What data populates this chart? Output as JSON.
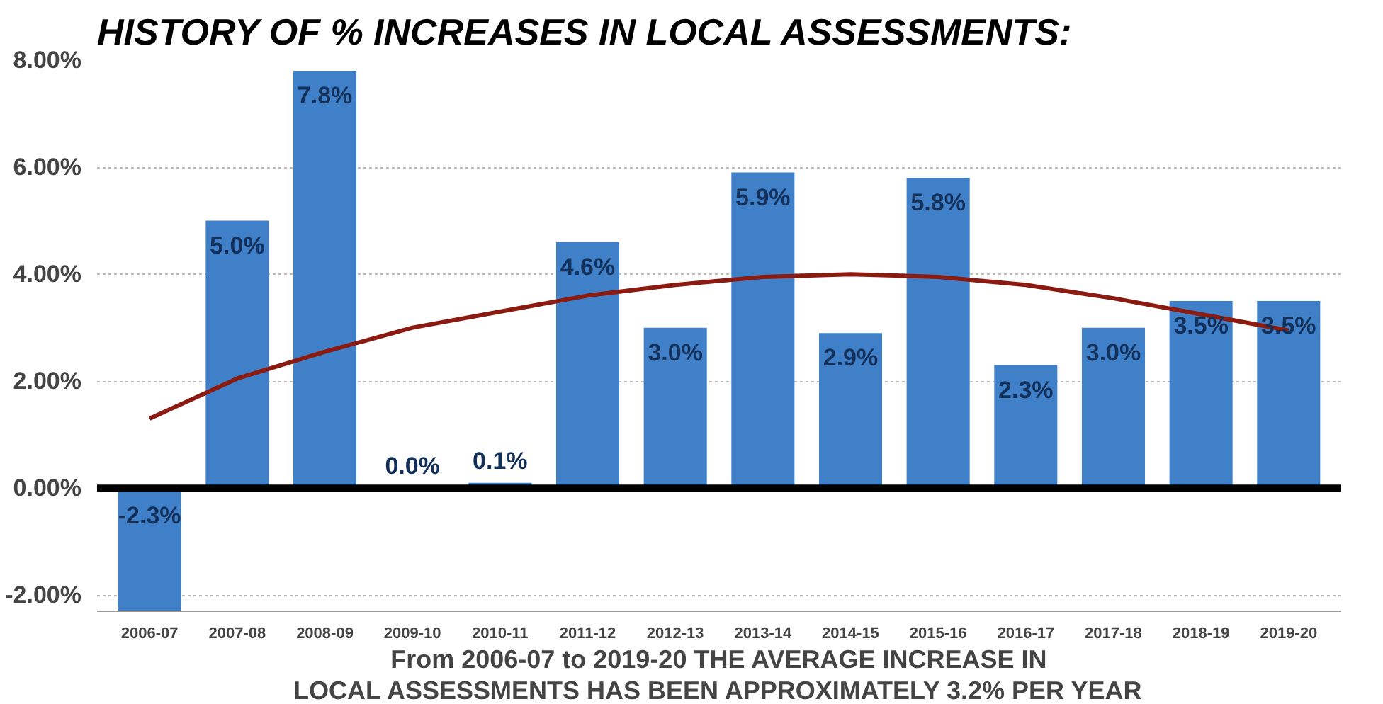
{
  "chart_data": {
    "type": "bar",
    "title": "HISTORY OF % INCREASES IN LOCAL ASSESSMENTS:",
    "categories": [
      "2006-07",
      "2007-08",
      "2008-09",
      "2009-10",
      "2010-11",
      "2011-12",
      "2012-13",
      "2013-14",
      "2014-15",
      "2015-16",
      "2016-17",
      "2017-18",
      "2018-19",
      "2019-20"
    ],
    "series": [
      {
        "color": "#3f80c8",
        "values": [
          -2.3,
          5.0,
          7.8,
          0.0,
          0.1,
          4.6,
          3.0,
          5.9,
          2.9,
          5.8,
          2.3,
          3.0,
          3.5,
          3.5
        ],
        "value_labels": [
          "-2.3%",
          "5.0%",
          "7.8%",
          "0.0%",
          "0.1%",
          "4.6%",
          "3.0%",
          "5.9%",
          "2.9%",
          "5.8%",
          "2.3%",
          "3.0%",
          "3.5%",
          "3.5%"
        ]
      },
      {
        "type": "line",
        "color": "#8b1a10",
        "values": [
          1.3,
          2.05,
          2.55,
          3.0,
          3.3,
          3.6,
          3.8,
          3.95,
          4.0,
          3.95,
          3.8,
          3.55,
          3.25,
          2.95
        ]
      }
    ],
    "ylim": [
      -2.3,
      8
    ],
    "yticks": [
      {
        "value": -2,
        "label": "-2.00%"
      },
      {
        "value": 0,
        "label": "0.00%"
      },
      {
        "value": 2,
        "label": "2.00%"
      },
      {
        "value": 4,
        "label": "4.00%"
      },
      {
        "value": 6,
        "label": "6.00%"
      },
      {
        "value": 8,
        "label": "8.00%"
      }
    ],
    "grid": "y",
    "ref_lines": [
      {
        "axis": "y",
        "value": 0,
        "color": "#000000"
      }
    ],
    "annotations": [
      "From 2006-07 to 2019-20 THE AVERAGE INCREASE IN\nLOCAL ASSESSMENTS HAS BEEN APPROXIMATELY 3.2% PER YEAR"
    ]
  }
}
